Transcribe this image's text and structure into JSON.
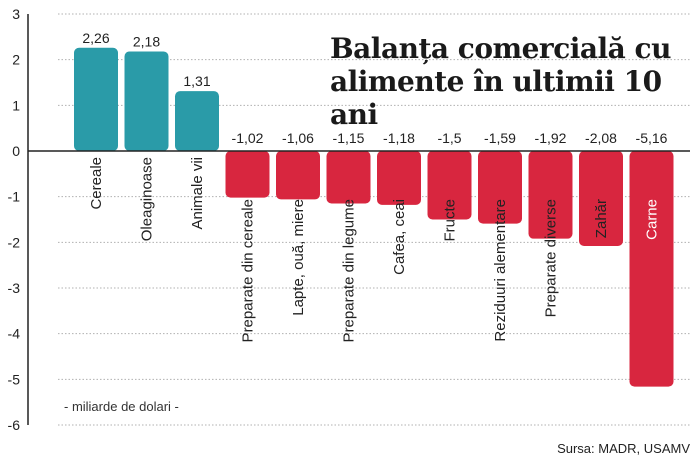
{
  "chart_data": {
    "type": "bar",
    "title": "Balanța comercială cu alimente în ultimii 10 ani",
    "unit_label": "- miliarde de dolari -",
    "source": "Sursa: MADR, USAMV",
    "categories": [
      "Cereale",
      "Oleaginoase",
      "Animale vii",
      "Preparate din cereale",
      "Lapte, ouă, miere",
      "Preparate din legume",
      "Cafea, ceai",
      "Fructe",
      "Reziduuri alementare",
      "Preparate diverse",
      "Zahăr",
      "Carne"
    ],
    "values": [
      2.26,
      2.18,
      1.31,
      -1.02,
      -1.06,
      -1.15,
      -1.18,
      -1.5,
      -1.59,
      -1.92,
      -2.08,
      -5.16
    ],
    "value_labels": [
      "2,26",
      "2,18",
      "1,31",
      "-1,02",
      "-1,06",
      "-1,15",
      "-1,18",
      "-1,5",
      "-1,59",
      "-1,92",
      "-2,08",
      "-5,16"
    ],
    "ylim": [
      -6,
      3
    ],
    "yticks": [
      3,
      2,
      1,
      0,
      -1,
      -2,
      -3,
      -4,
      -5,
      -6
    ],
    "grid": true,
    "colors": {
      "positive": "#2a9ba8",
      "negative": "#d8263f",
      "grid": "#b0b0b0"
    }
  }
}
